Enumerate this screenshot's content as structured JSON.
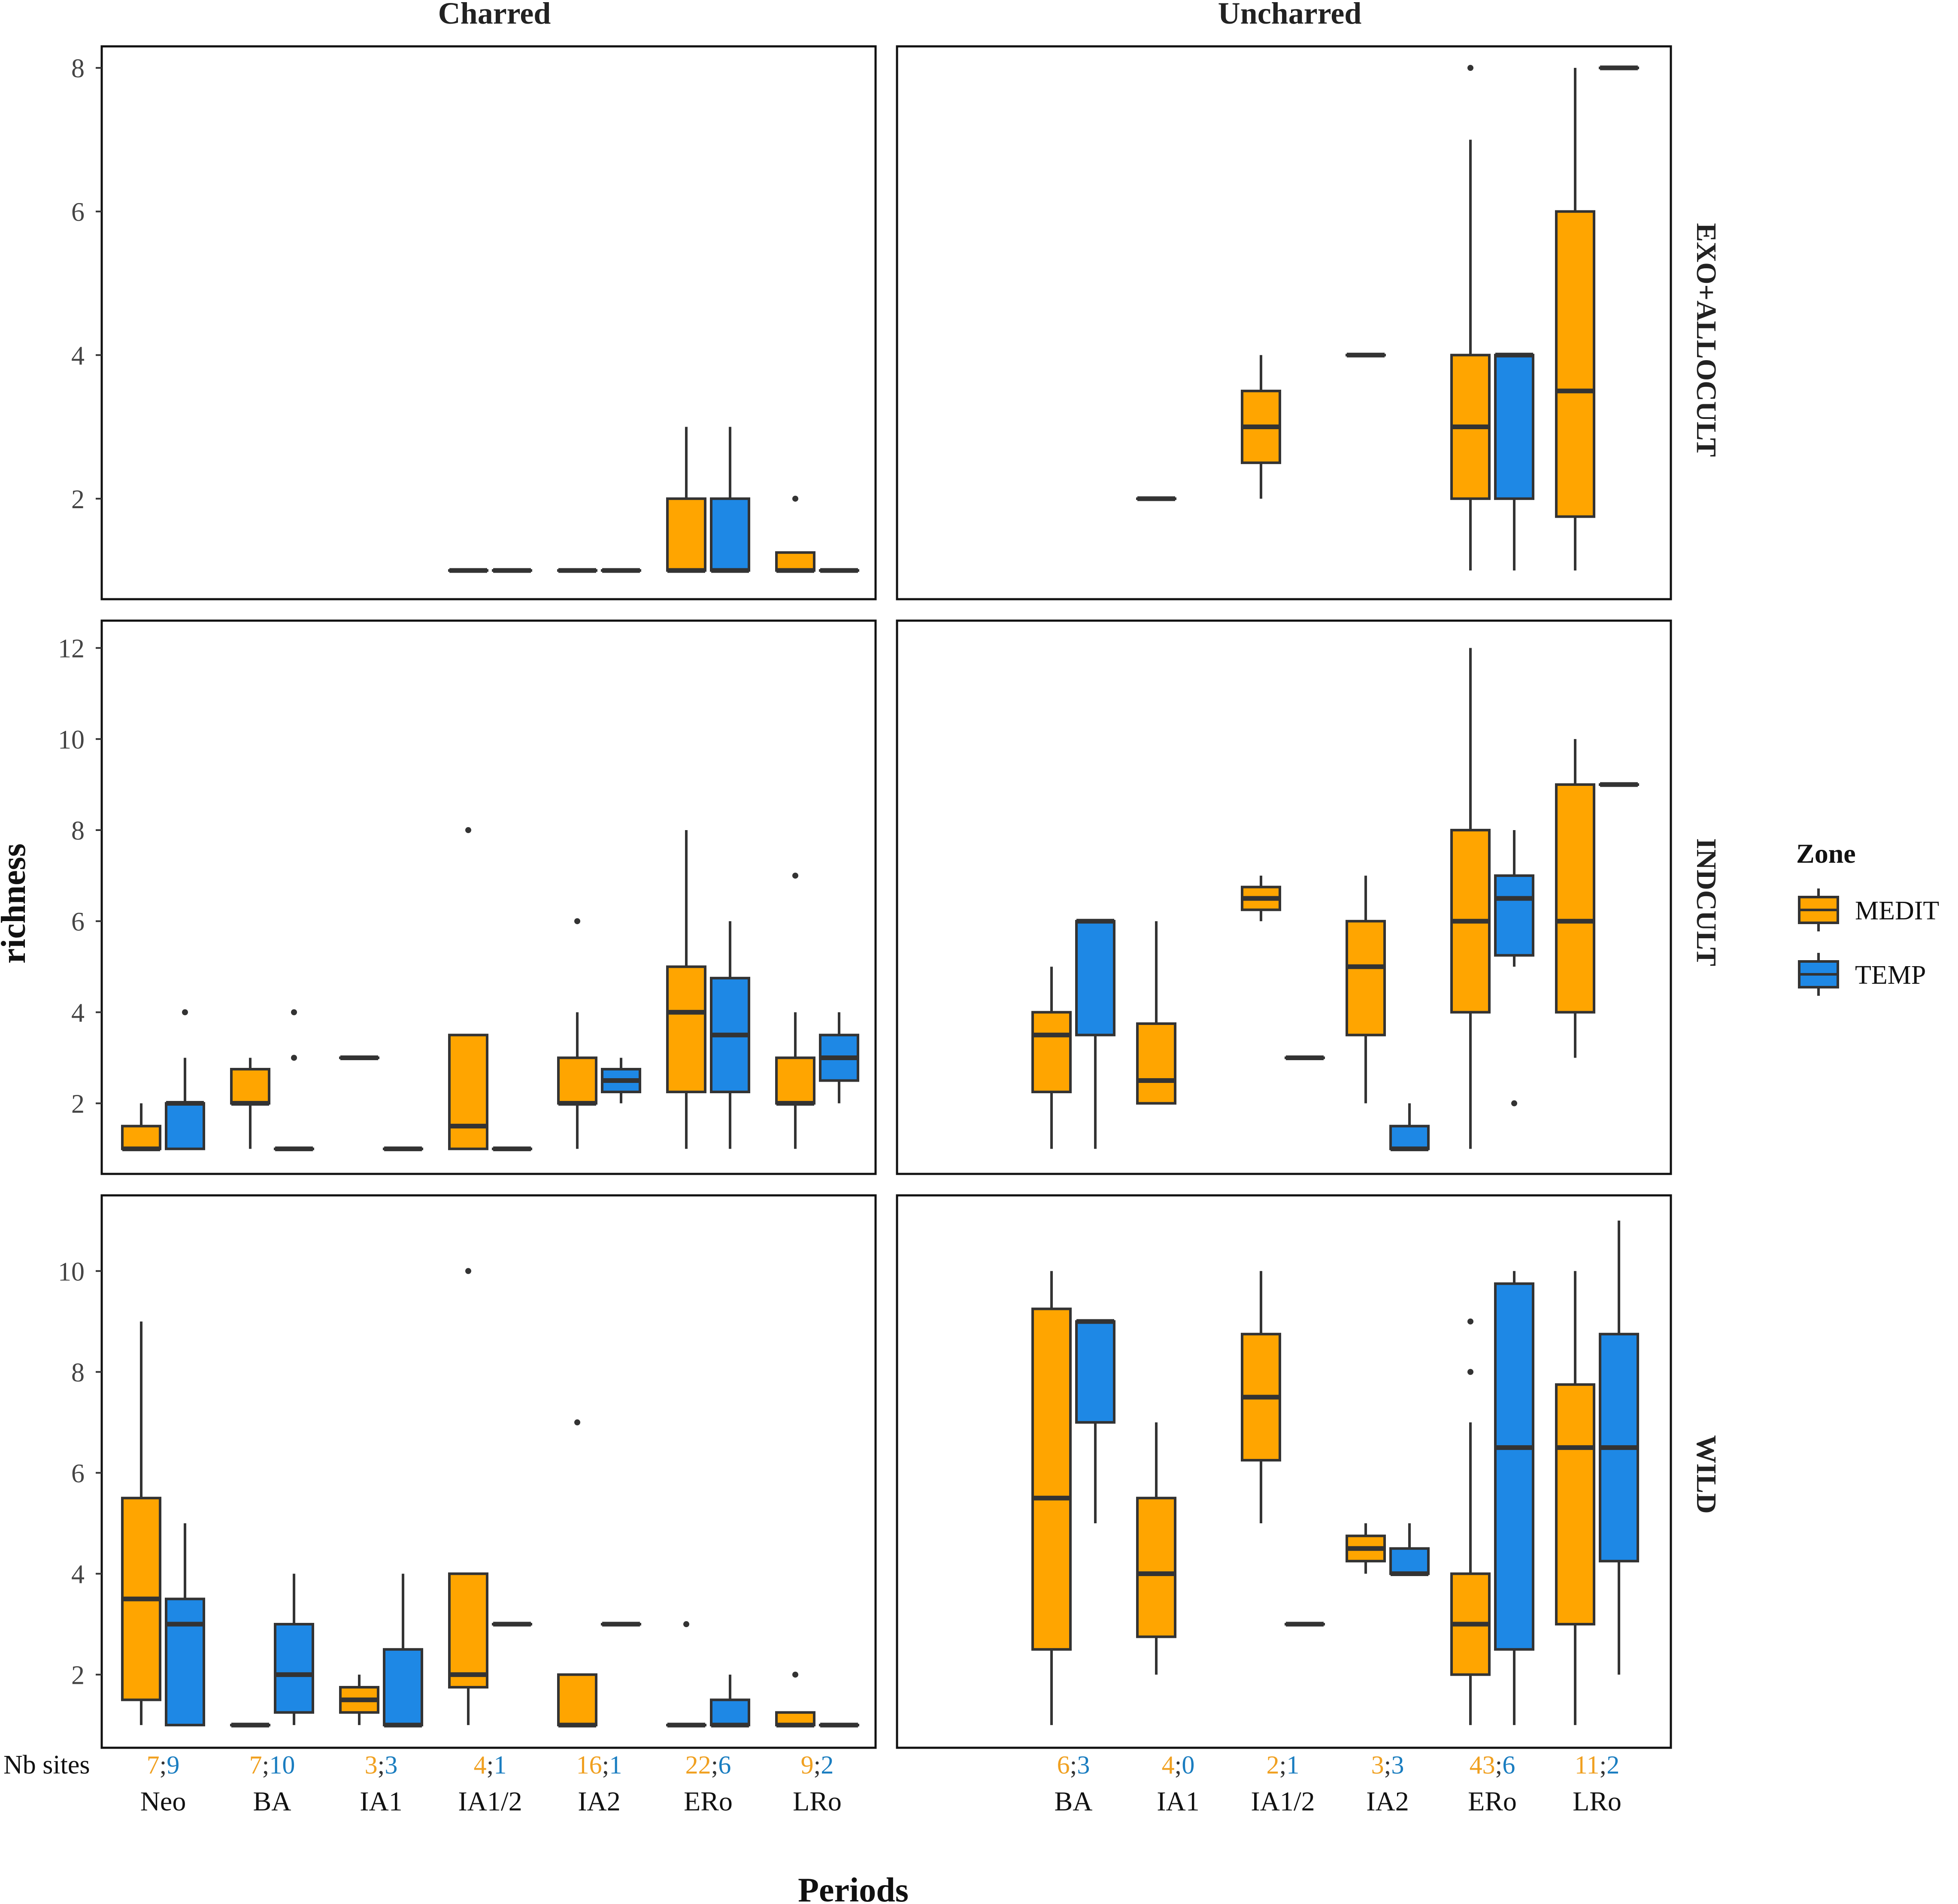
{
  "chart_data": {
    "type": "boxplot",
    "columns": [
      "Charred",
      "Uncharred"
    ],
    "rows": [
      "EXO+ALLOCULT",
      "INDCULT",
      "WILD"
    ],
    "ylabel": "richness",
    "xlabel": "Periods",
    "legend": {
      "title": "Zone",
      "position": "right",
      "items": [
        {
          "name": "MEDIT",
          "color": "#FFA500"
        },
        {
          "name": "TEMP",
          "color": "#1E88E5"
        }
      ]
    },
    "nb_sites_label": "Nb sites",
    "colors": {
      "MEDIT": "#FFA500",
      "TEMP": "#1E88E5",
      "MEDIT_text": "#F0A020",
      "TEMP_text": "#1A7DC0",
      "line": "#333333"
    },
    "row_ranges": {
      "EXO+ALLOCULT": {
        "ylim": [
          0.6,
          8.3
        ],
        "ticks": [
          2,
          4,
          6,
          8
        ]
      },
      "INDCULT": {
        "ylim": [
          0.45,
          12.6
        ],
        "ticks": [
          2,
          4,
          6,
          8,
          10,
          12
        ]
      },
      "WILD": {
        "ylim": [
          0.55,
          11.5
        ],
        "ticks": [
          2,
          4,
          6,
          8,
          10
        ]
      }
    },
    "panels": {
      "Charred": {
        "periods": [
          "Neo",
          "BA",
          "IA1",
          "IA1/2",
          "IA2",
          "ERo",
          "LRo"
        ],
        "nb_sites": [
          [
            "7",
            "9"
          ],
          [
            "7",
            "10"
          ],
          [
            "3",
            "3"
          ],
          [
            "4",
            "1"
          ],
          [
            "16",
            "1"
          ],
          [
            "22",
            "6"
          ],
          [
            "9",
            "2"
          ]
        ],
        "EXO+ALLOCULT": [
          {
            "period": "IA1/2",
            "zone": "MEDIT",
            "lo": 1,
            "q1": 1,
            "med": 1,
            "q3": 1,
            "hi": 1,
            "out": []
          },
          {
            "period": "IA1/2",
            "zone": "TEMP",
            "lo": 1,
            "q1": 1,
            "med": 1,
            "q3": 1,
            "hi": 1,
            "out": []
          },
          {
            "period": "IA2",
            "zone": "MEDIT",
            "lo": 1,
            "q1": 1,
            "med": 1,
            "q3": 1,
            "hi": 1,
            "out": []
          },
          {
            "period": "IA2",
            "zone": "TEMP",
            "lo": 1,
            "q1": 1,
            "med": 1,
            "q3": 1,
            "hi": 1,
            "out": []
          },
          {
            "period": "ERo",
            "zone": "MEDIT",
            "lo": 1,
            "q1": 1,
            "med": 1,
            "q3": 2,
            "hi": 3,
            "out": []
          },
          {
            "period": "ERo",
            "zone": "TEMP",
            "lo": 1,
            "q1": 1,
            "med": 1,
            "q3": 2,
            "hi": 3,
            "out": []
          },
          {
            "period": "LRo",
            "zone": "MEDIT",
            "lo": 1,
            "q1": 1,
            "med": 1,
            "q3": 1.25,
            "hi": 1.25,
            "out": [
              2
            ]
          },
          {
            "period": "LRo",
            "zone": "TEMP",
            "lo": 1,
            "q1": 1,
            "med": 1,
            "q3": 1,
            "hi": 1,
            "out": []
          }
        ],
        "INDCULT": [
          {
            "period": "Neo",
            "zone": "MEDIT",
            "lo": 1,
            "q1": 1,
            "med": 1,
            "q3": 1.5,
            "hi": 2,
            "out": []
          },
          {
            "period": "Neo",
            "zone": "TEMP",
            "lo": 1,
            "q1": 1,
            "med": 2,
            "q3": 2,
            "hi": 3,
            "out": [
              4
            ]
          },
          {
            "period": "BA",
            "zone": "MEDIT",
            "lo": 1,
            "q1": 2,
            "med": 2,
            "q3": 2.75,
            "hi": 3,
            "out": []
          },
          {
            "period": "BA",
            "zone": "TEMP",
            "lo": 1,
            "q1": 1,
            "med": 1,
            "q3": 1,
            "hi": 1,
            "out": [
              3,
              4
            ]
          },
          {
            "period": "IA1",
            "zone": "MEDIT",
            "lo": 3,
            "q1": 3,
            "med": 3,
            "q3": 3,
            "hi": 3,
            "out": []
          },
          {
            "period": "IA1",
            "zone": "TEMP",
            "lo": 1,
            "q1": 1,
            "med": 1,
            "q3": 1,
            "hi": 1,
            "out": []
          },
          {
            "period": "IA1/2",
            "zone": "MEDIT",
            "lo": 1,
            "q1": 1,
            "med": 1.5,
            "q3": 3.5,
            "hi": 3.5,
            "out": [
              8
            ]
          },
          {
            "period": "IA1/2",
            "zone": "TEMP",
            "lo": 1,
            "q1": 1,
            "med": 1,
            "q3": 1,
            "hi": 1,
            "out": []
          },
          {
            "period": "IA2",
            "zone": "MEDIT",
            "lo": 1,
            "q1": 2,
            "med": 2,
            "q3": 3,
            "hi": 4,
            "out": [
              6
            ]
          },
          {
            "period": "IA2",
            "zone": "TEMP",
            "lo": 2,
            "q1": 2.25,
            "med": 2.5,
            "q3": 2.75,
            "hi": 3,
            "out": []
          },
          {
            "period": "ERo",
            "zone": "MEDIT",
            "lo": 1,
            "q1": 2.25,
            "med": 4,
            "q3": 5,
            "hi": 8,
            "out": []
          },
          {
            "period": "ERo",
            "zone": "TEMP",
            "lo": 1,
            "q1": 2.25,
            "med": 3.5,
            "q3": 4.75,
            "hi": 6,
            "out": []
          },
          {
            "period": "LRo",
            "zone": "MEDIT",
            "lo": 1,
            "q1": 2,
            "med": 2,
            "q3": 3,
            "hi": 4,
            "out": [
              7
            ]
          },
          {
            "period": "LRo",
            "zone": "TEMP",
            "lo": 2,
            "q1": 2.5,
            "med": 3,
            "q3": 3.5,
            "hi": 4,
            "out": []
          }
        ],
        "WILD": [
          {
            "period": "Neo",
            "zone": "MEDIT",
            "lo": 1,
            "q1": 1.5,
            "med": 3.5,
            "q3": 5.5,
            "hi": 9,
            "out": []
          },
          {
            "period": "Neo",
            "zone": "TEMP",
            "lo": 1,
            "q1": 1,
            "med": 3,
            "q3": 3.5,
            "hi": 5,
            "out": []
          },
          {
            "period": "BA",
            "zone": "MEDIT",
            "lo": 1,
            "q1": 1,
            "med": 1,
            "q3": 1,
            "hi": 1,
            "out": []
          },
          {
            "period": "BA",
            "zone": "TEMP",
            "lo": 1,
            "q1": 1.25,
            "med": 2,
            "q3": 3,
            "hi": 4,
            "out": []
          },
          {
            "period": "IA1",
            "zone": "MEDIT",
            "lo": 1,
            "q1": 1.25,
            "med": 1.5,
            "q3": 1.75,
            "hi": 2,
            "out": []
          },
          {
            "period": "IA1",
            "zone": "TEMP",
            "lo": 1,
            "q1": 1,
            "med": 1,
            "q3": 2.5,
            "hi": 4,
            "out": []
          },
          {
            "period": "IA1/2",
            "zone": "MEDIT",
            "lo": 1,
            "q1": 1.75,
            "med": 2,
            "q3": 4,
            "hi": 4,
            "out": [
              10
            ]
          },
          {
            "period": "IA1/2",
            "zone": "TEMP",
            "lo": 3,
            "q1": 3,
            "med": 3,
            "q3": 3,
            "hi": 3,
            "out": []
          },
          {
            "period": "IA2",
            "zone": "MEDIT",
            "lo": 1,
            "q1": 1,
            "med": 1,
            "q3": 2,
            "hi": 2,
            "out": [
              7
            ]
          },
          {
            "period": "IA2",
            "zone": "TEMP",
            "lo": 3,
            "q1": 3,
            "med": 3,
            "q3": 3,
            "hi": 3,
            "out": []
          },
          {
            "period": "ERo",
            "zone": "MEDIT",
            "lo": 1,
            "q1": 1,
            "med": 1,
            "q3": 1,
            "hi": 1,
            "out": [
              3
            ]
          },
          {
            "period": "ERo",
            "zone": "TEMP",
            "lo": 1,
            "q1": 1,
            "med": 1,
            "q3": 1.5,
            "hi": 2,
            "out": []
          },
          {
            "period": "LRo",
            "zone": "MEDIT",
            "lo": 1,
            "q1": 1,
            "med": 1,
            "q3": 1.25,
            "hi": 1.25,
            "out": [
              2
            ]
          },
          {
            "period": "LRo",
            "zone": "TEMP",
            "lo": 1,
            "q1": 1,
            "med": 1,
            "q3": 1,
            "hi": 1,
            "out": []
          }
        ]
      },
      "Uncharred": {
        "periods": [
          "BA",
          "IA1",
          "IA1/2",
          "IA2",
          "ERo",
          "LRo"
        ],
        "nb_sites": [
          [
            "6",
            "3"
          ],
          [
            "4",
            "0"
          ],
          [
            "2",
            "1"
          ],
          [
            "3",
            "3"
          ],
          [
            "43",
            "6"
          ],
          [
            "11",
            "2"
          ]
        ],
        "EXO+ALLOCULT": [
          {
            "period": "IA1",
            "zone": "MEDIT",
            "lo": 2,
            "q1": 2,
            "med": 2,
            "q3": 2,
            "hi": 2,
            "out": []
          },
          {
            "period": "IA1/2",
            "zone": "MEDIT",
            "lo": 2,
            "q1": 2.5,
            "med": 3,
            "q3": 3.5,
            "hi": 4,
            "out": []
          },
          {
            "period": "IA2",
            "zone": "MEDIT",
            "lo": 4,
            "q1": 4,
            "med": 4,
            "q3": 4,
            "hi": 4,
            "out": []
          },
          {
            "period": "ERo",
            "zone": "MEDIT",
            "lo": 1,
            "q1": 2,
            "med": 3,
            "q3": 4,
            "hi": 7,
            "out": [
              8
            ]
          },
          {
            "period": "ERo",
            "zone": "TEMP",
            "lo": 1,
            "q1": 2,
            "med": 4,
            "q3": 4,
            "hi": 4,
            "out": []
          },
          {
            "period": "LRo",
            "zone": "MEDIT",
            "lo": 1,
            "q1": 1.75,
            "med": 3.5,
            "q3": 6,
            "hi": 8,
            "out": []
          },
          {
            "period": "LRo",
            "zone": "TEMP",
            "lo": 8,
            "q1": 8,
            "med": 8,
            "q3": 8,
            "hi": 8,
            "out": []
          }
        ],
        "INDCULT": [
          {
            "period": "BA",
            "zone": "MEDIT",
            "lo": 1,
            "q1": 2.25,
            "med": 3.5,
            "q3": 4,
            "hi": 5,
            "out": []
          },
          {
            "period": "BA",
            "zone": "TEMP",
            "lo": 1,
            "q1": 3.5,
            "med": 6,
            "q3": 6,
            "hi": 6,
            "out": []
          },
          {
            "period": "IA1",
            "zone": "MEDIT",
            "lo": 2,
            "q1": 2,
            "med": 2.5,
            "q3": 3.75,
            "hi": 6,
            "out": []
          },
          {
            "period": "IA1/2",
            "zone": "MEDIT",
            "lo": 6,
            "q1": 6.25,
            "med": 6.5,
            "q3": 6.75,
            "hi": 7,
            "out": []
          },
          {
            "period": "IA1/2",
            "zone": "TEMP",
            "lo": 3,
            "q1": 3,
            "med": 3,
            "q3": 3,
            "hi": 3,
            "out": []
          },
          {
            "period": "IA2",
            "zone": "MEDIT",
            "lo": 2,
            "q1": 3.5,
            "med": 5,
            "q3": 6,
            "hi": 7,
            "out": []
          },
          {
            "period": "IA2",
            "zone": "TEMP",
            "lo": 1,
            "q1": 1,
            "med": 1,
            "q3": 1.5,
            "hi": 2,
            "out": []
          },
          {
            "period": "ERo",
            "zone": "MEDIT",
            "lo": 1,
            "q1": 4,
            "med": 6,
            "q3": 8,
            "hi": 12,
            "out": []
          },
          {
            "period": "ERo",
            "zone": "TEMP",
            "lo": 5,
            "q1": 5.25,
            "med": 6.5,
            "q3": 7,
            "hi": 8,
            "out": [
              2
            ]
          },
          {
            "period": "LRo",
            "zone": "MEDIT",
            "lo": 3,
            "q1": 4,
            "med": 6,
            "q3": 9,
            "hi": 10,
            "out": []
          },
          {
            "period": "LRo",
            "zone": "TEMP",
            "lo": 9,
            "q1": 9,
            "med": 9,
            "q3": 9,
            "hi": 9,
            "out": []
          }
        ],
        "WILD": [
          {
            "period": "BA",
            "zone": "MEDIT",
            "lo": 1,
            "q1": 2.5,
            "med": 5.5,
            "q3": 9.25,
            "hi": 10,
            "out": []
          },
          {
            "period": "BA",
            "zone": "TEMP",
            "lo": 5,
            "q1": 7,
            "med": 9,
            "q3": 9,
            "hi": 9,
            "out": []
          },
          {
            "period": "IA1",
            "zone": "MEDIT",
            "lo": 2,
            "q1": 2.75,
            "med": 4,
            "q3": 5.5,
            "hi": 7,
            "out": []
          },
          {
            "period": "IA1/2",
            "zone": "MEDIT",
            "lo": 5,
            "q1": 6.25,
            "med": 7.5,
            "q3": 8.75,
            "hi": 10,
            "out": []
          },
          {
            "period": "IA1/2",
            "zone": "TEMP",
            "lo": 3,
            "q1": 3,
            "med": 3,
            "q3": 3,
            "hi": 3,
            "out": []
          },
          {
            "period": "IA2",
            "zone": "MEDIT",
            "lo": 4,
            "q1": 4.25,
            "med": 4.5,
            "q3": 4.75,
            "hi": 5,
            "out": []
          },
          {
            "period": "IA2",
            "zone": "TEMP",
            "lo": 4,
            "q1": 4,
            "med": 4,
            "q3": 4.5,
            "hi": 5,
            "out": []
          },
          {
            "period": "ERo",
            "zone": "MEDIT",
            "lo": 1,
            "q1": 2,
            "med": 3,
            "q3": 4,
            "hi": 7,
            "out": [
              8,
              9
            ]
          },
          {
            "period": "ERo",
            "zone": "TEMP",
            "lo": 1,
            "q1": 2.5,
            "med": 6.5,
            "q3": 9.75,
            "hi": 10,
            "out": []
          },
          {
            "period": "LRo",
            "zone": "MEDIT",
            "lo": 1,
            "q1": 3,
            "med": 6.5,
            "q3": 7.75,
            "hi": 10,
            "out": []
          },
          {
            "period": "LRo",
            "zone": "TEMP",
            "lo": 2,
            "q1": 4.25,
            "med": 6.5,
            "q3": 8.75,
            "hi": 11,
            "out": []
          }
        ]
      }
    }
  }
}
